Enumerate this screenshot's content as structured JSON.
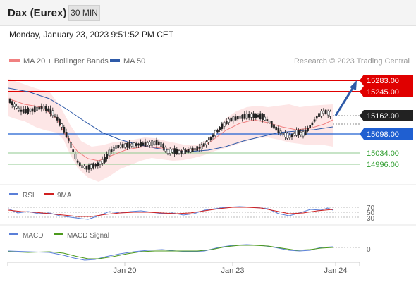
{
  "header": {
    "title": "Dax (Eurex)",
    "timeframe": "30 MIN"
  },
  "datetime": "Monday, January 23, 2023 9:51:52 PM CET",
  "legend": {
    "ma20_label": "MA 20 + Bollinger Bands",
    "ma50_label": "MA 50",
    "copyright": "Research © 2023 Trading Central"
  },
  "levels": {
    "r2": "15283.00",
    "r1": "15245.00",
    "current": "15162.00",
    "pivot": "15098.00",
    "s1": "15034.00",
    "s2": "14996.00"
  },
  "rsi_panel": {
    "rsi_label": "RSI",
    "ma_label": "9MA",
    "level_70": "70",
    "level_50": "50",
    "level_30": "30"
  },
  "macd_panel": {
    "macd_label": "MACD",
    "signal_label": "MACD Signal",
    "zero": "0"
  },
  "x_axis": {
    "ticks": [
      "Jan 20",
      "Jan 23",
      "Jan 24"
    ]
  },
  "colors": {
    "ma20": "#f08080",
    "ma50": "#2e5aa8",
    "resistance": "#e00000",
    "pivot": "#1f5fd1",
    "support": "#2e9e2e",
    "current": "#222222",
    "candle_up": "#ffffff",
    "candle_down": "#222222",
    "rsi": "#5a7fd8",
    "rsi_ma": "#d02020",
    "macd": "#5a7fd8",
    "macd_signal": "#4c9a1c"
  }
}
